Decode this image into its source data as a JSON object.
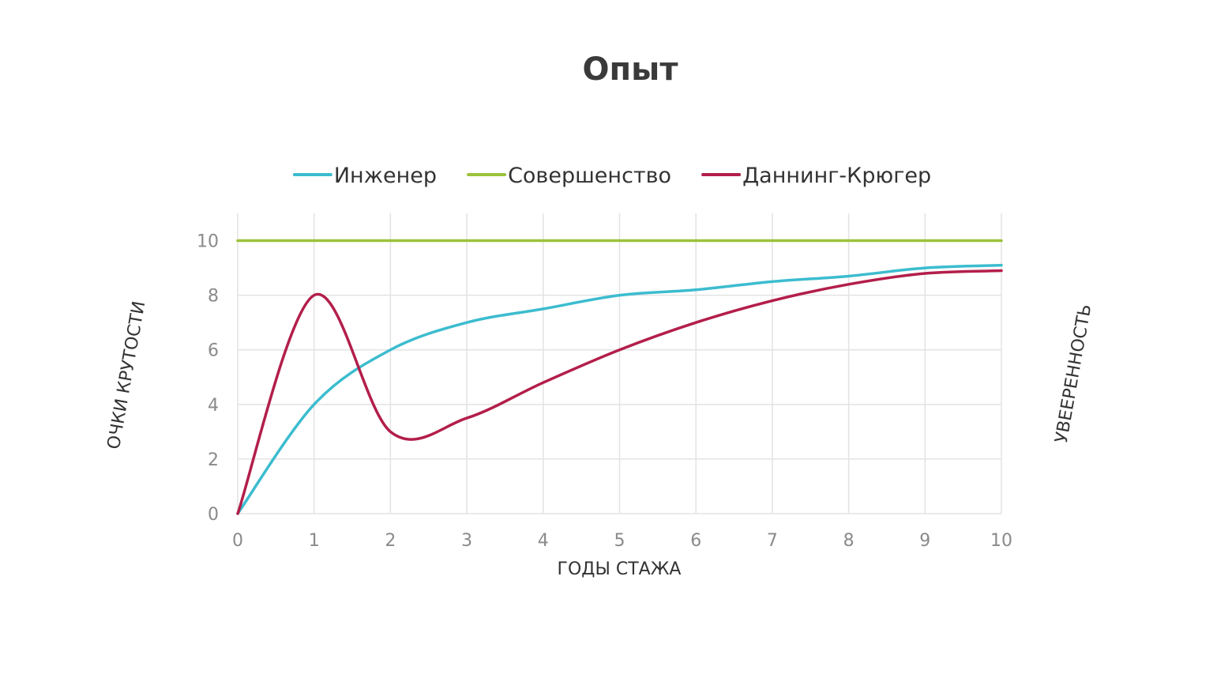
{
  "chart_data": {
    "type": "line",
    "title": "Опыт",
    "xlabel": "ГОДЫ СТАЖА",
    "ylabel": "ОЧКИ КРУТОСТИ",
    "ylabel_right": "УВЕЕРЕННОСТЬ",
    "xlim": [
      0,
      10
    ],
    "ylim": [
      0,
      11
    ],
    "x_ticks": [
      "0",
      "1",
      "2",
      "3",
      "4",
      "5",
      "6",
      "7",
      "8",
      "9",
      "10"
    ],
    "y_ticks": [
      "0",
      "2",
      "4",
      "6",
      "8",
      "10"
    ],
    "grid": true,
    "legend_position": "top",
    "series": [
      {
        "name": "Инженер",
        "color": "#3cbccf",
        "x": [
          0,
          1,
          2,
          3,
          4,
          5,
          6,
          7,
          8,
          9,
          10
        ],
        "y": [
          0,
          4,
          6,
          7,
          7.5,
          8,
          8.2,
          8.5,
          8.7,
          9,
          9.1
        ]
      },
      {
        "name": "Совершенство",
        "color": "#9bc23c",
        "x": [
          0,
          1,
          2,
          3,
          4,
          5,
          6,
          7,
          8,
          9,
          10
        ],
        "y": [
          10,
          10,
          10,
          10,
          10,
          10,
          10,
          10,
          10,
          10,
          10
        ]
      },
      {
        "name": "Даннинг-Крюгер",
        "color": "#b31e4a",
        "x": [
          0,
          1,
          2,
          3,
          4,
          5,
          6,
          7,
          8,
          9,
          10
        ],
        "y": [
          0,
          8,
          3,
          3.5,
          4.8,
          6,
          7,
          7.8,
          8.4,
          8.8,
          8.9
        ]
      }
    ]
  }
}
